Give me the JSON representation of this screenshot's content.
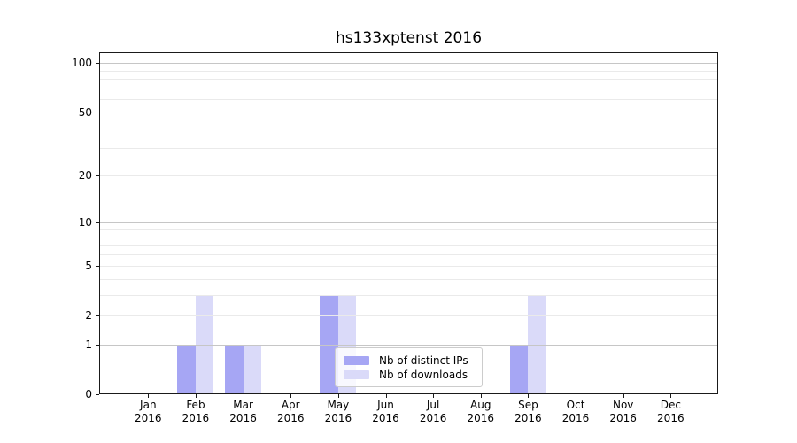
{
  "colors": {
    "background": "#ffffff",
    "spine": "#1a1a1a",
    "grid_major": "#c6c6c6",
    "grid_minor": "#eaeaea",
    "text": "#000000",
    "legend_border": "#cccccc",
    "legend_bg": "rgba(255,255,255,0.8)"
  },
  "chart_data": {
    "type": "bar",
    "title": "hs133xptenst 2016",
    "y_scale": "log10(1+x)",
    "grid": true,
    "legend_position": "lower center",
    "categories": [
      {
        "month": "Jan",
        "year": "2016"
      },
      {
        "month": "Feb",
        "year": "2016"
      },
      {
        "month": "Mar",
        "year": "2016"
      },
      {
        "month": "Apr",
        "year": "2016"
      },
      {
        "month": "May",
        "year": "2016"
      },
      {
        "month": "Jun",
        "year": "2016"
      },
      {
        "month": "Jul",
        "year": "2016"
      },
      {
        "month": "Aug",
        "year": "2016"
      },
      {
        "month": "Sep",
        "year": "2016"
      },
      {
        "month": "Oct",
        "year": "2016"
      },
      {
        "month": "Nov",
        "year": "2016"
      },
      {
        "month": "Dec",
        "year": "2016"
      }
    ],
    "series": [
      {
        "name": "Nb of distinct IPs",
        "color": "#a6a6f4",
        "values": [
          0,
          1,
          1,
          0,
          3,
          0,
          0,
          0,
          1,
          0,
          0,
          0
        ]
      },
      {
        "name": "Nb of downloads",
        "color": "#dadaf9",
        "values": [
          0,
          3,
          1,
          0,
          3,
          0,
          0,
          0,
          3,
          0,
          0,
          0
        ]
      }
    ],
    "y_tick_labels": [
      0,
      1,
      2,
      5,
      10,
      20,
      50,
      100
    ],
    "y_gridlines_major": [
      1,
      10,
      100
    ],
    "y_gridlines_minor": [
      2,
      3,
      4,
      5,
      6,
      7,
      8,
      9,
      20,
      30,
      40,
      50,
      60,
      70,
      80,
      90
    ],
    "ylim": [
      0,
      116
    ]
  }
}
